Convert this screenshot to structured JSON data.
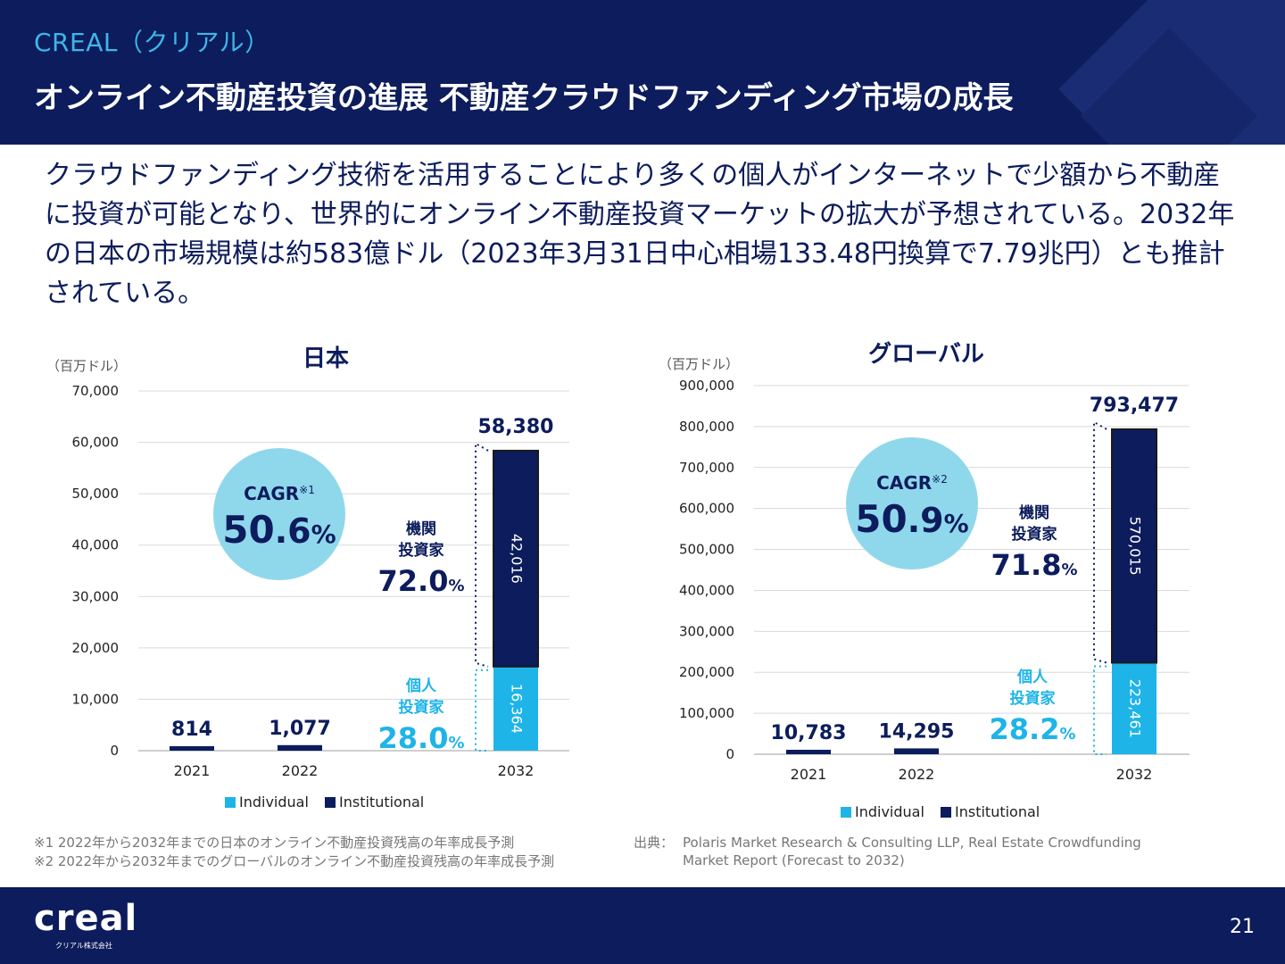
{
  "header": {
    "brand": "CREAL（クリアル）",
    "title": "オンライン不動産投資の進展 不動産クラウドファンディング市場の成長"
  },
  "lead_text": "クラウドファンディング技術を活用することにより多くの個人がインターネットで少額から不動産に投資が可能となり、世界的にオンライン不動産投資マーケットの拡大が予想されている。2032年の日本の市場規模は約583億ドル（2023年3月31日中心相場133.48円換算で7.79兆円）とも推計されている。",
  "colors": {
    "navy": "#0c1c5c",
    "individual": "#1eb4e8",
    "circle": "#8fd8ec",
    "grid": "#d9d9d9"
  },
  "chart_data": [
    {
      "type": "bar",
      "stacked": true,
      "title": "日本",
      "unit": "（百万ドル）",
      "categories": [
        "2021",
        "2022",
        "2032"
      ],
      "ylim": [
        0,
        70000
      ],
      "yticks": [
        0,
        10000,
        20000,
        30000,
        40000,
        50000,
        60000,
        70000
      ],
      "ytick_labels": [
        "0",
        "10,000",
        "20,000",
        "30,000",
        "40,000",
        "50,000",
        "60,000",
        "70,000"
      ],
      "series": [
        {
          "name": "Individual",
          "color": "#1eb4e8",
          "values": [
            null,
            null,
            16364
          ]
        },
        {
          "name": "Institutional",
          "color": "#0c1c5c",
          "values": [
            814,
            1077,
            42016
          ]
        }
      ],
      "segment_labels": {
        "individual": "16,364",
        "institutional": "42,016"
      },
      "totals": [
        814,
        1077,
        58380
      ],
      "total_labels": [
        "814",
        "1,077",
        "58,380"
      ],
      "cagr": {
        "label": "CAGR",
        "note": "※1",
        "number": "50.6",
        "unit": "%"
      },
      "institutional_share": {
        "line1": "機関",
        "line2": "投資家",
        "number": "72.0",
        "unit": "%"
      },
      "individual_share": {
        "line1": "個人",
        "line2": "投資家",
        "number": "28.0",
        "unit": "%"
      },
      "legend": [
        "Individual",
        "Institutional"
      ],
      "grid": true
    },
    {
      "type": "bar",
      "stacked": true,
      "title": "グローバル",
      "unit": "（百万ドル）",
      "categories": [
        "2021",
        "2022",
        "2032"
      ],
      "ylim": [
        0,
        900000
      ],
      "yticks": [
        0,
        100000,
        200000,
        300000,
        400000,
        500000,
        600000,
        700000,
        800000,
        900000
      ],
      "ytick_labels": [
        "0",
        "100,000",
        "200,000",
        "300,000",
        "400,000",
        "500,000",
        "600,000",
        "700,000",
        "800,000",
        "900,000"
      ],
      "series": [
        {
          "name": "Individual",
          "color": "#1eb4e8",
          "values": [
            null,
            null,
            223461
          ]
        },
        {
          "name": "Institutional",
          "color": "#0c1c5c",
          "values": [
            10783,
            14295,
            570015
          ]
        }
      ],
      "segment_labels": {
        "individual": "223,461",
        "institutional": "570,015"
      },
      "totals": [
        10783,
        14295,
        793477
      ],
      "total_labels": [
        "10,783",
        "14,295",
        "793,477"
      ],
      "cagr": {
        "label": "CAGR",
        "note": "※2",
        "number": "50.9",
        "unit": "%"
      },
      "institutional_share": {
        "line1": "機関",
        "line2": "投資家",
        "number": "71.8",
        "unit": "%"
      },
      "individual_share": {
        "line1": "個人",
        "line2": "投資家",
        "number": "28.2",
        "unit": "%"
      },
      "legend": [
        "Individual",
        "Institutional"
      ],
      "grid": true
    }
  ],
  "footnotes": [
    "※1 2022年から2032年までの日本のオンライン不動産投資残高の年率成長予測",
    "※2 2022年から2032年までのグローバルのオンライン不動産投資残高の年率成長予測"
  ],
  "source": {
    "label": "出典：",
    "text": "Polaris Market Research & Consulting LLP, Real Estate Crowdfunding Market Report (Forecast to 2032)"
  },
  "footer": {
    "logo": "creal",
    "logo_sub": "クリアル株式会社",
    "page": "21"
  }
}
